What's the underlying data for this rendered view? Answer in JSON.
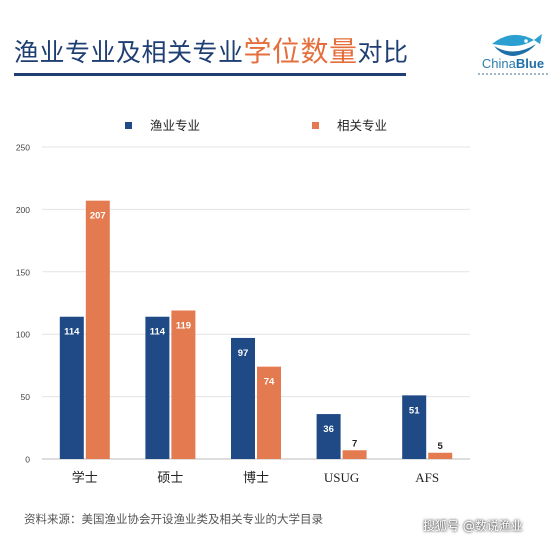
{
  "header": {
    "title_part1": "渔业专业及相关专业",
    "title_highlight": "学位数量",
    "title_part2": "对比"
  },
  "logo": {
    "text_light": "China",
    "text_bold": "Blue",
    "icon": "fish-icon"
  },
  "source": "资料来源：美国渔业协会开设渔业类及相关专业的大学目录",
  "watermark": "搜狐号 @数说渔业",
  "colors": {
    "fishery": "#1f4a86",
    "related": "#e47a4f",
    "title": "#1f3f73",
    "highlight": "#e46f3c"
  },
  "chart_data": {
    "type": "bar",
    "categories": [
      "学士",
      "硕士",
      "博士",
      "USUG",
      "AFS"
    ],
    "series": [
      {
        "name": "渔业专业",
        "values": [
          114,
          114,
          97,
          36,
          51
        ]
      },
      {
        "name": "相关专业",
        "values": [
          207,
          119,
          74,
          7,
          5
        ]
      }
    ],
    "yticks": [
      0,
      50,
      100,
      150,
      200,
      250
    ],
    "ylim": [
      0,
      250
    ],
    "legend_position": "top",
    "grid": true
  }
}
